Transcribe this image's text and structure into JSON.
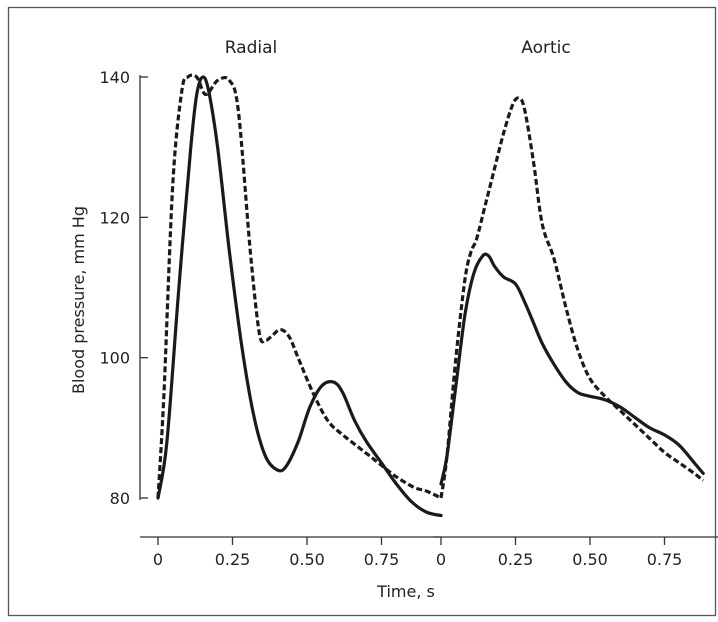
{
  "chart_data": [
    {
      "type": "line",
      "title": "Radial",
      "xlabel": "Time, s",
      "ylabel": "Blood pressure, mm Hg",
      "ylim": [
        80,
        140
      ],
      "y_ticks": [
        "80",
        "100",
        "120",
        "140"
      ],
      "x_ticks": [
        {
          "value": 0,
          "label": "0"
        },
        {
          "value": 0.25,
          "label": "0.25"
        },
        {
          "value": 0.5,
          "label": "0.50"
        },
        {
          "value": 0.75,
          "label": "0.75"
        }
      ],
      "series": [
        {
          "style": "solid",
          "x": [
            0,
            0.03,
            0.07,
            0.11,
            0.13,
            0.15,
            0.17,
            0.2,
            0.24,
            0.28,
            0.32,
            0.36,
            0.4,
            0.43,
            0.47,
            0.51,
            0.55,
            0.59,
            0.62,
            0.66,
            0.7,
            0.75,
            0.8,
            0.85,
            0.9,
            0.95
          ],
          "values": [
            80,
            88,
            110,
            130,
            137.5,
            140,
            138,
            130,
            115,
            102,
            92,
            86,
            84,
            84.5,
            88,
            93,
            96,
            96.5,
            95,
            91,
            88,
            85,
            82,
            79.5,
            78,
            77.5
          ]
        },
        {
          "style": "dashed",
          "x": [
            0,
            0.02,
            0.05,
            0.08,
            0.1,
            0.13,
            0.16,
            0.2,
            0.24,
            0.27,
            0.31,
            0.34,
            0.36,
            0.38,
            0.41,
            0.44,
            0.47,
            0.52,
            0.57,
            0.62,
            0.68,
            0.74,
            0.8,
            0.86,
            0.9,
            0.95
          ],
          "values": [
            80,
            95,
            125,
            138,
            140,
            140,
            137.5,
            139.5,
            139.5,
            135,
            115,
            103.5,
            102.5,
            103,
            104,
            103,
            100,
            95,
            91,
            89,
            87,
            85,
            83,
            81.5,
            81,
            80
          ]
        }
      ]
    },
    {
      "type": "line",
      "title": "Aortic",
      "xlabel": "Time, s",
      "ylabel": "Blood pressure, mm Hg",
      "ylim": [
        80,
        140
      ],
      "x_ticks": [
        {
          "value": 0,
          "label": "0"
        },
        {
          "value": 0.25,
          "label": "0.25"
        },
        {
          "value": 0.5,
          "label": "0.50"
        },
        {
          "value": 0.75,
          "label": "0.75"
        }
      ],
      "series": [
        {
          "style": "solid",
          "x": [
            0,
            0.02,
            0.05,
            0.08,
            0.11,
            0.14,
            0.16,
            0.18,
            0.21,
            0.25,
            0.28,
            0.31,
            0.34,
            0.38,
            0.42,
            0.46,
            0.5,
            0.55,
            0.6,
            0.65,
            0.7,
            0.75,
            0.8,
            0.85,
            0.88
          ],
          "values": [
            82,
            86,
            96,
            106,
            112,
            114.5,
            114.5,
            113,
            111.5,
            110.5,
            108,
            105,
            102,
            99,
            96.5,
            95,
            94.5,
            94,
            93,
            91.5,
            90,
            89,
            87.5,
            85,
            83.5
          ]
        },
        {
          "style": "dashed",
          "x": [
            0,
            0.02,
            0.05,
            0.08,
            0.1,
            0.12,
            0.15,
            0.18,
            0.21,
            0.24,
            0.26,
            0.28,
            0.31,
            0.34,
            0.38,
            0.42,
            0.46,
            0.5,
            0.55,
            0.6,
            0.65,
            0.7,
            0.75,
            0.8,
            0.85,
            0.88
          ],
          "values": [
            80,
            86,
            100,
            111,
            115,
            117,
            122,
            127,
            132,
            136,
            137,
            135.5,
            128,
            119,
            114,
            107,
            101,
            97,
            94.5,
            92.5,
            90.5,
            88.5,
            86.5,
            85,
            83.5,
            82.5
          ]
        }
      ]
    }
  ]
}
